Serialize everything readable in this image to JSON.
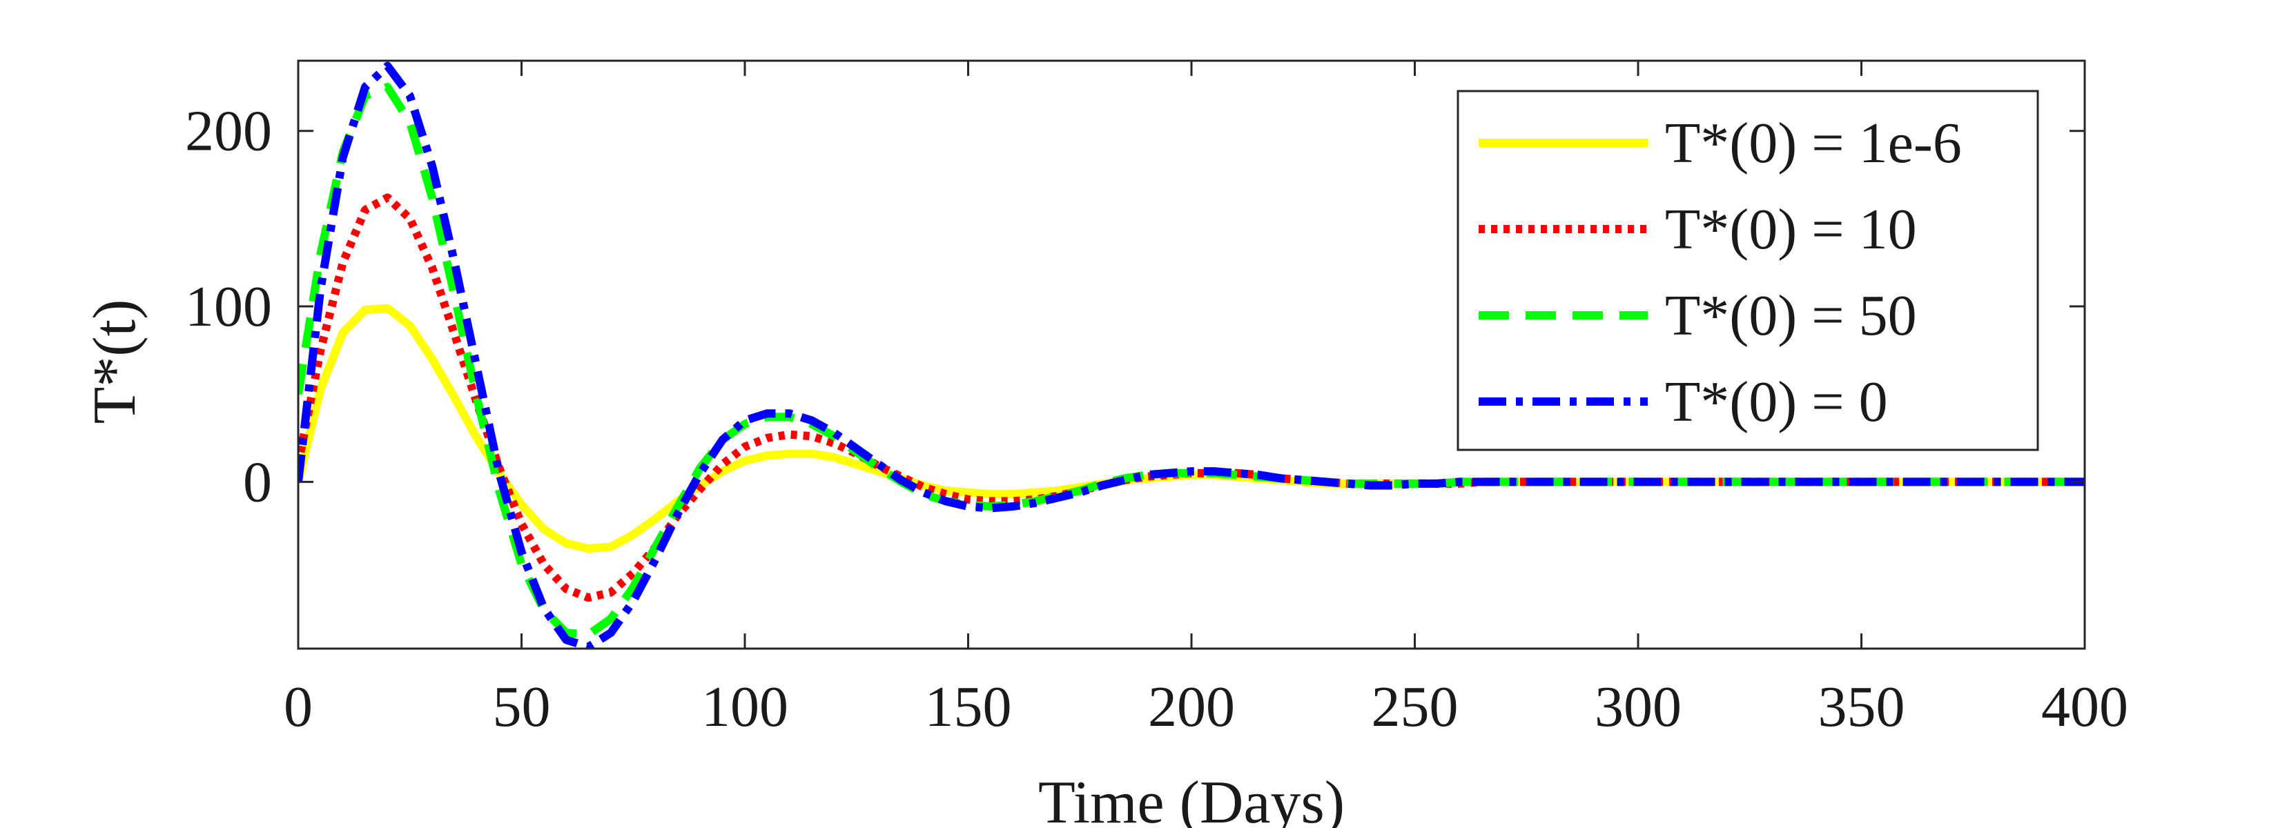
{
  "chart_data": {
    "type": "line",
    "title": "",
    "xlabel": "Time (Days)",
    "ylabel": "T*(t)",
    "xlim": [
      0,
      400
    ],
    "ylim": [
      -95,
      240
    ],
    "x_ticks": [
      0,
      50,
      100,
      150,
      200,
      250,
      300,
      350,
      400
    ],
    "y_ticks": [
      0,
      100,
      200
    ],
    "grid": false,
    "legend_position": "top-right",
    "x": [
      0,
      5,
      10,
      15,
      20,
      25,
      30,
      35,
      40,
      45,
      50,
      55,
      60,
      65,
      70,
      75,
      80,
      85,
      90,
      95,
      100,
      105,
      110,
      115,
      120,
      125,
      130,
      135,
      140,
      145,
      150,
      155,
      160,
      165,
      170,
      175,
      180,
      185,
      190,
      195,
      200,
      205,
      210,
      215,
      220,
      225,
      230,
      235,
      240,
      245,
      250,
      255,
      260,
      265,
      270,
      275,
      280,
      285,
      290,
      295,
      300,
      305,
      310,
      315,
      320,
      325,
      330,
      335,
      340,
      345,
      350,
      355,
      360,
      365,
      370,
      375,
      380,
      385,
      390,
      395,
      400
    ],
    "series": [
      {
        "name": "T*(0) = 1e-6",
        "color": "#ffff00",
        "style": "solid",
        "values": [
          0,
          53,
          85,
          98,
          99,
          89,
          70,
          48,
          25,
          5,
          -13,
          -27,
          -35,
          -38,
          -37,
          -30,
          -21,
          -11,
          -2,
          6,
          12,
          15,
          16,
          16,
          14,
          10,
          6,
          2,
          -2,
          -5,
          -6,
          -7,
          -7,
          -6,
          -5,
          -3,
          -1,
          1,
          2,
          3,
          4,
          4,
          3,
          2,
          1,
          0,
          -1,
          -1,
          -1,
          -1,
          -1,
          -1,
          0,
          0,
          0,
          0,
          0,
          0,
          0,
          0,
          0,
          0,
          0,
          0,
          0,
          0,
          0,
          0,
          0,
          0,
          0,
          0,
          0,
          0,
          0,
          0,
          0,
          0,
          0,
          0,
          0
        ]
      },
      {
        "name": "T*(0) = 10",
        "color": "#ff0000",
        "style": "dotted",
        "values": [
          10,
          75,
          125,
          155,
          162,
          150,
          122,
          84,
          45,
          8,
          -24,
          -47,
          -61,
          -66,
          -63,
          -52,
          -37,
          -19,
          -4,
          10,
          20,
          25,
          27,
          26,
          22,
          16,
          9,
          3,
          -3,
          -7,
          -10,
          -11,
          -11,
          -10,
          -8,
          -5,
          -2,
          1,
          3,
          4,
          5,
          5,
          5,
          4,
          2,
          1,
          0,
          -1,
          -1,
          -1,
          -1,
          -1,
          -1,
          0,
          0,
          0,
          0,
          0,
          0,
          0,
          0,
          0,
          0,
          0,
          0,
          0,
          0,
          0,
          0,
          0,
          0,
          0,
          0,
          0,
          0,
          0,
          0,
          0,
          0,
          0,
          0
        ]
      },
      {
        "name": "T*(0) = 50",
        "color": "#00ff00",
        "style": "dashed",
        "values": [
          50,
          130,
          188,
          220,
          225,
          205,
          162,
          106,
          48,
          -5,
          -47,
          -73,
          -86,
          -87,
          -78,
          -60,
          -37,
          -14,
          8,
          24,
          33,
          37,
          37,
          33,
          26,
          17,
          8,
          0,
          -7,
          -11,
          -13,
          -14,
          -13,
          -11,
          -8,
          -5,
          -1,
          2,
          4,
          5,
          5,
          5,
          4,
          3,
          2,
          1,
          0,
          -1,
          -1,
          -1,
          -1,
          -1,
          0,
          0,
          0,
          0,
          0,
          0,
          0,
          0,
          0,
          0,
          0,
          0,
          0,
          0,
          0,
          0,
          0,
          0,
          0,
          0,
          0,
          0,
          0,
          0,
          0,
          0,
          0,
          0,
          0
        ]
      },
      {
        "name": "T*(0) = 0",
        "color": "#0000ff",
        "style": "dashdot",
        "values": [
          0,
          110,
          185,
          225,
          237,
          220,
          180,
          125,
          65,
          5,
          -40,
          -72,
          -90,
          -94,
          -86,
          -68,
          -44,
          -18,
          5,
          24,
          35,
          39,
          39,
          35,
          28,
          19,
          10,
          1,
          -6,
          -11,
          -14,
          -15,
          -14,
          -12,
          -9,
          -6,
          -2,
          1,
          4,
          5,
          6,
          6,
          5,
          4,
          2,
          1,
          0,
          -1,
          -2,
          -2,
          -1,
          -1,
          0,
          0,
          0,
          0,
          0,
          0,
          0,
          0,
          0,
          0,
          0,
          0,
          0,
          0,
          0,
          0,
          0,
          0,
          0,
          0,
          0,
          0,
          0,
          0,
          0,
          0,
          0,
          0,
          0
        ]
      }
    ]
  }
}
